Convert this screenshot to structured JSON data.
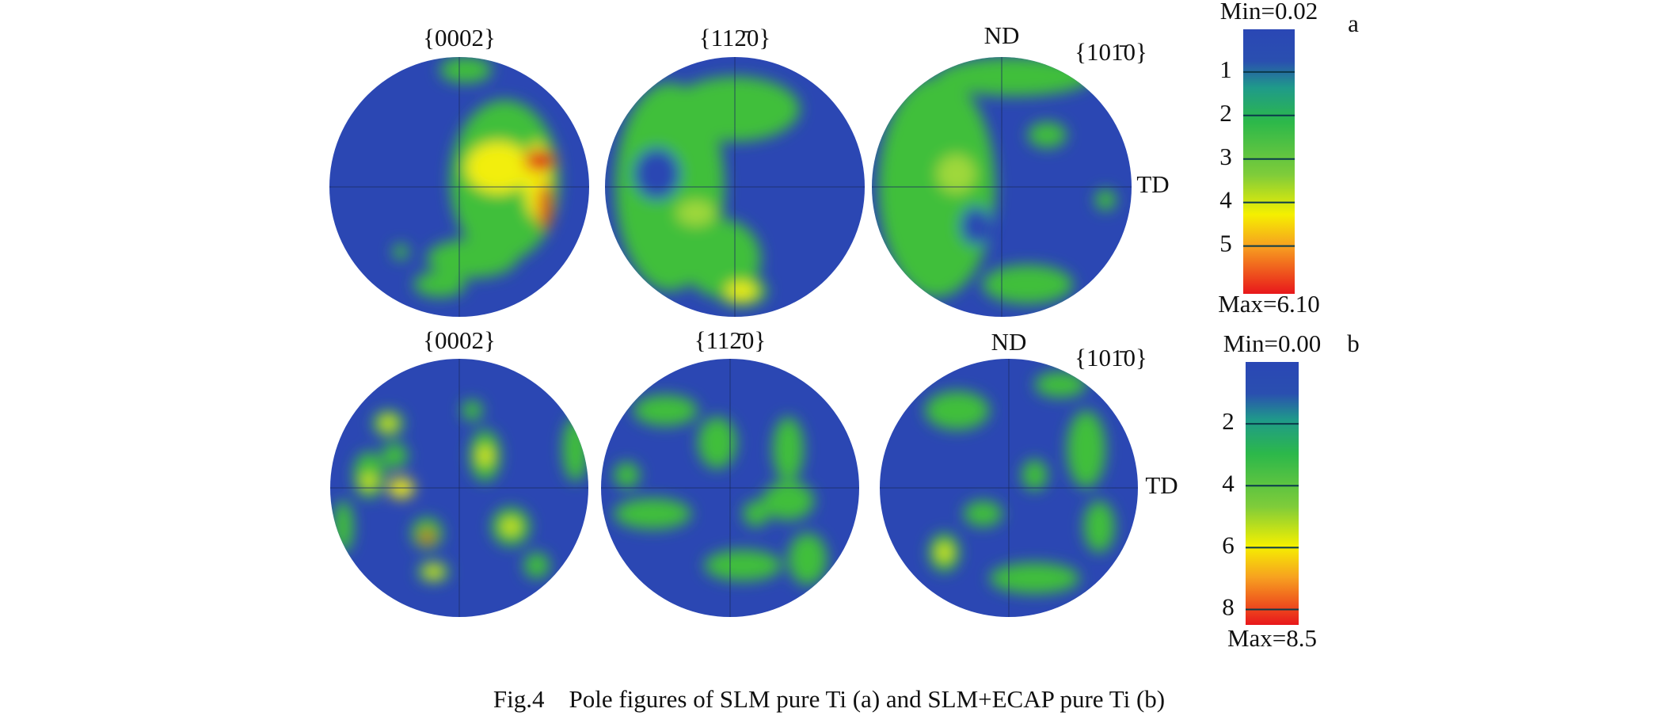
{
  "panels": [
    {
      "letter": "a",
      "pole_figures": [
        {
          "title": "{0002}"
        },
        {
          "title": "{112̄0}"
        },
        {
          "title": "{101̄0}",
          "nd": "ND",
          "td": "TD"
        }
      ],
      "colorbar": {
        "min": {
          "value": 0.02,
          "label": "Min=0.02"
        },
        "max": {
          "value": 6.1,
          "label": "Max=6.10"
        },
        "ticks": [
          1,
          2,
          3,
          4,
          5
        ]
      }
    },
    {
      "letter": "b",
      "pole_figures": [
        {
          "title": "{0002}"
        },
        {
          "title": "{112̄0}"
        },
        {
          "title": "{101̄0}",
          "nd": "ND",
          "td": "TD"
        }
      ],
      "colorbar": {
        "min": {
          "value": 0.0,
          "label": "Min=0.00"
        },
        "max": {
          "value": 8.5,
          "label": "Max=8.5"
        },
        "ticks": [
          2,
          4,
          6,
          8
        ]
      }
    }
  ],
  "caption": "Fig.4    Pole figures of SLM pure Ti (a) and SLM+ECAP pure Ti (b)"
}
